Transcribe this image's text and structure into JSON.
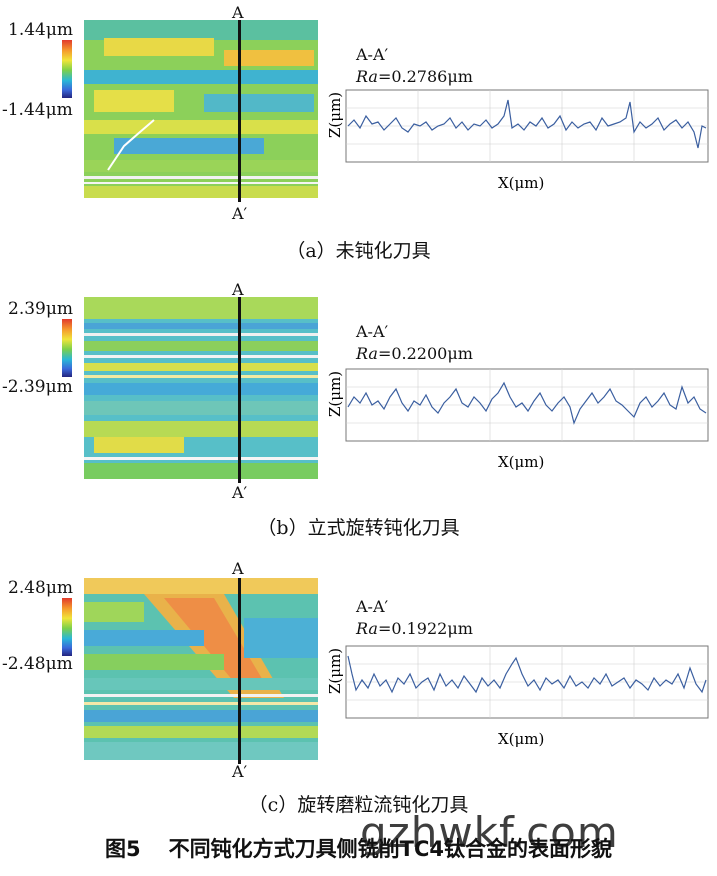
{
  "panels": [
    {
      "scale_max": "1.44μm",
      "scale_min": "-1.44μm",
      "label_a": "A",
      "label_a_prime": "A′",
      "profile_title": "A-A′",
      "ra_label": "Ra",
      "ra_value": "=0.2786μm",
      "z_axis": "Z(μm)",
      "x_axis": "X(μm)",
      "caption": "（a）未钝化刀具"
    },
    {
      "scale_max": "2.39μm",
      "scale_min": "-2.39μm",
      "label_a": "A",
      "label_a_prime": "A′",
      "profile_title": "A-A′",
      "ra_label": "Ra",
      "ra_value": "=0.2200μm",
      "z_axis": "Z(μm)",
      "x_axis": "X(μm)",
      "caption": "（b）立式旋转钝化刀具"
    },
    {
      "scale_max": "2.48μm",
      "scale_min": "-2.48μm",
      "label_a": "A",
      "label_a_prime": "A′",
      "profile_title": "A-A′",
      "ra_label": "Ra",
      "ra_value": "=0.1922μm",
      "z_axis": "Z(μm)",
      "x_axis": "X(μm)",
      "caption": "（c）旋转磨粒流钝化刀具"
    }
  ],
  "figure_caption": {
    "number": "图5",
    "text": "不同钝化方式刀具侧铣削TC4钛合金的表面形貌"
  },
  "watermark": "gzhwkf.com",
  "colors": {
    "profile_line": "#3b5fa0",
    "colorbar_top": "#e23a2c",
    "colorbar_bottom": "#23247e"
  }
}
